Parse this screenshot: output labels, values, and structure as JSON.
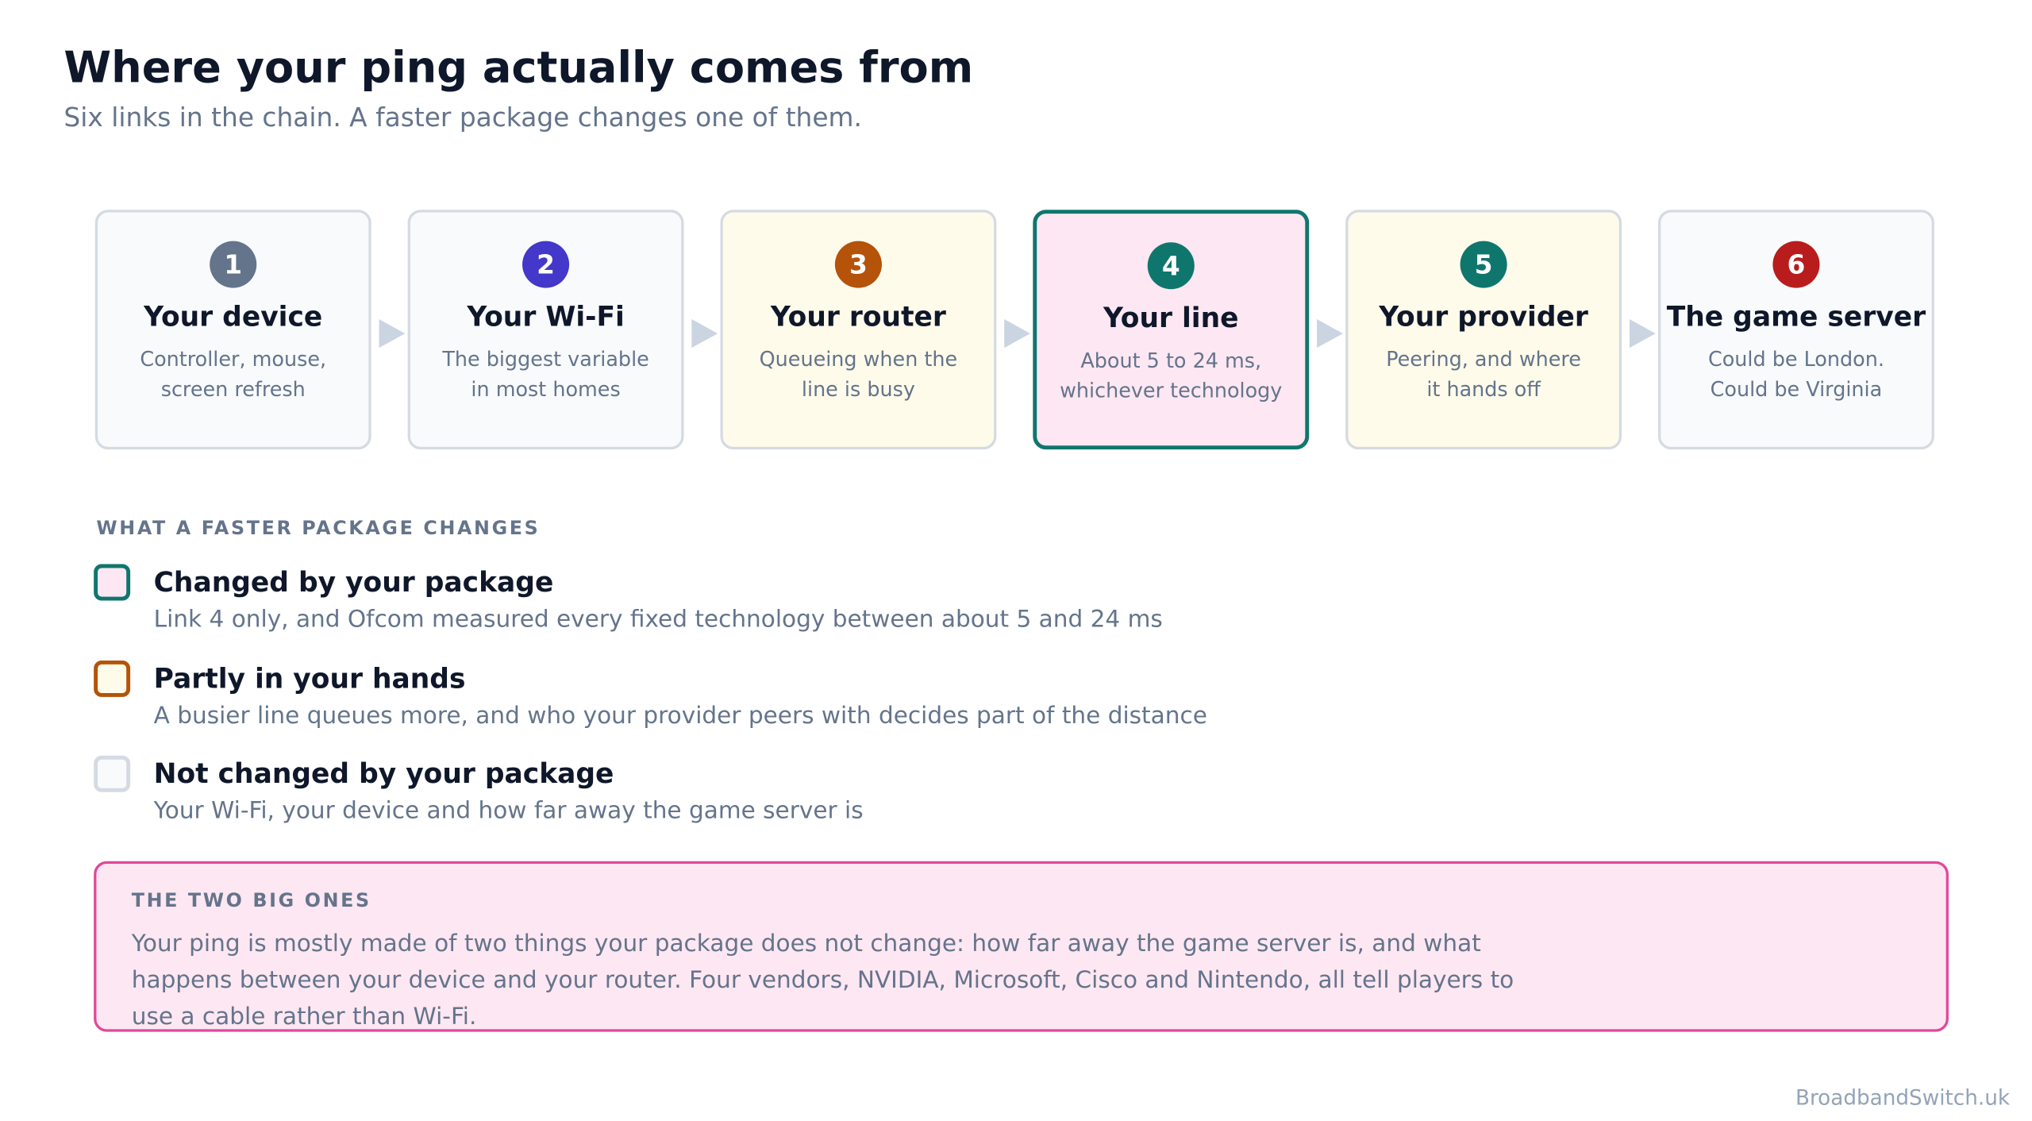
{
  "header": {
    "title": "Where your ping actually comes from",
    "subtitle": "Six links in the chain. A faster package changes one of them."
  },
  "steps": [
    {
      "number": "1",
      "title": "Your device",
      "description": "Controller, mouse,\nscreen refresh",
      "status": "not",
      "color": "#64748b"
    },
    {
      "number": "2",
      "title": "Your Wi-Fi",
      "description": "The biggest variable\nin most homes",
      "status": "not",
      "color": "#4338ca"
    },
    {
      "number": "3",
      "title": "Your router",
      "description": "Queueing when the\nline is busy",
      "status": "partly",
      "color": "#b45309"
    },
    {
      "number": "4",
      "title": "Your line",
      "description": "About 5 to 24 ms,\nwhichever technology",
      "status": "changed",
      "color": "#0f766e"
    },
    {
      "number": "5",
      "title": "Your provider",
      "description": "Peering, and where\nit hands off",
      "status": "partly",
      "color": "#0f766e"
    },
    {
      "number": "6",
      "title": "The game server",
      "description": "Could be London.\nCould be Virginia",
      "status": "not",
      "color": "#b91c1c"
    }
  ],
  "legend": {
    "heading": "WHAT A FASTER PACKAGE CHANGES",
    "items": [
      {
        "status": "changed",
        "title": "Changed by your package",
        "description": "Link 4 only, and Ofcom measured every fixed technology between about 5 and 24 ms"
      },
      {
        "status": "partly",
        "title": "Partly in your hands",
        "description": "A busier line queues more, and who your provider peers with decides part of the distance"
      },
      {
        "status": "not",
        "title": "Not changed by your package",
        "description": "Your Wi-Fi, your device and how far away the game server is"
      }
    ]
  },
  "callout": {
    "heading": "THE TWO BIG ONES",
    "text": "Your ping is mostly made of two things your package does not change: how far away the game server is, and what happens between your device and your router. Four vendors, NVIDIA, Microsoft, Cisco and Nintendo, all tell players to use a cable rather than Wi-Fi."
  },
  "footer": {
    "brand": "BroadbandSwitch.uk"
  }
}
